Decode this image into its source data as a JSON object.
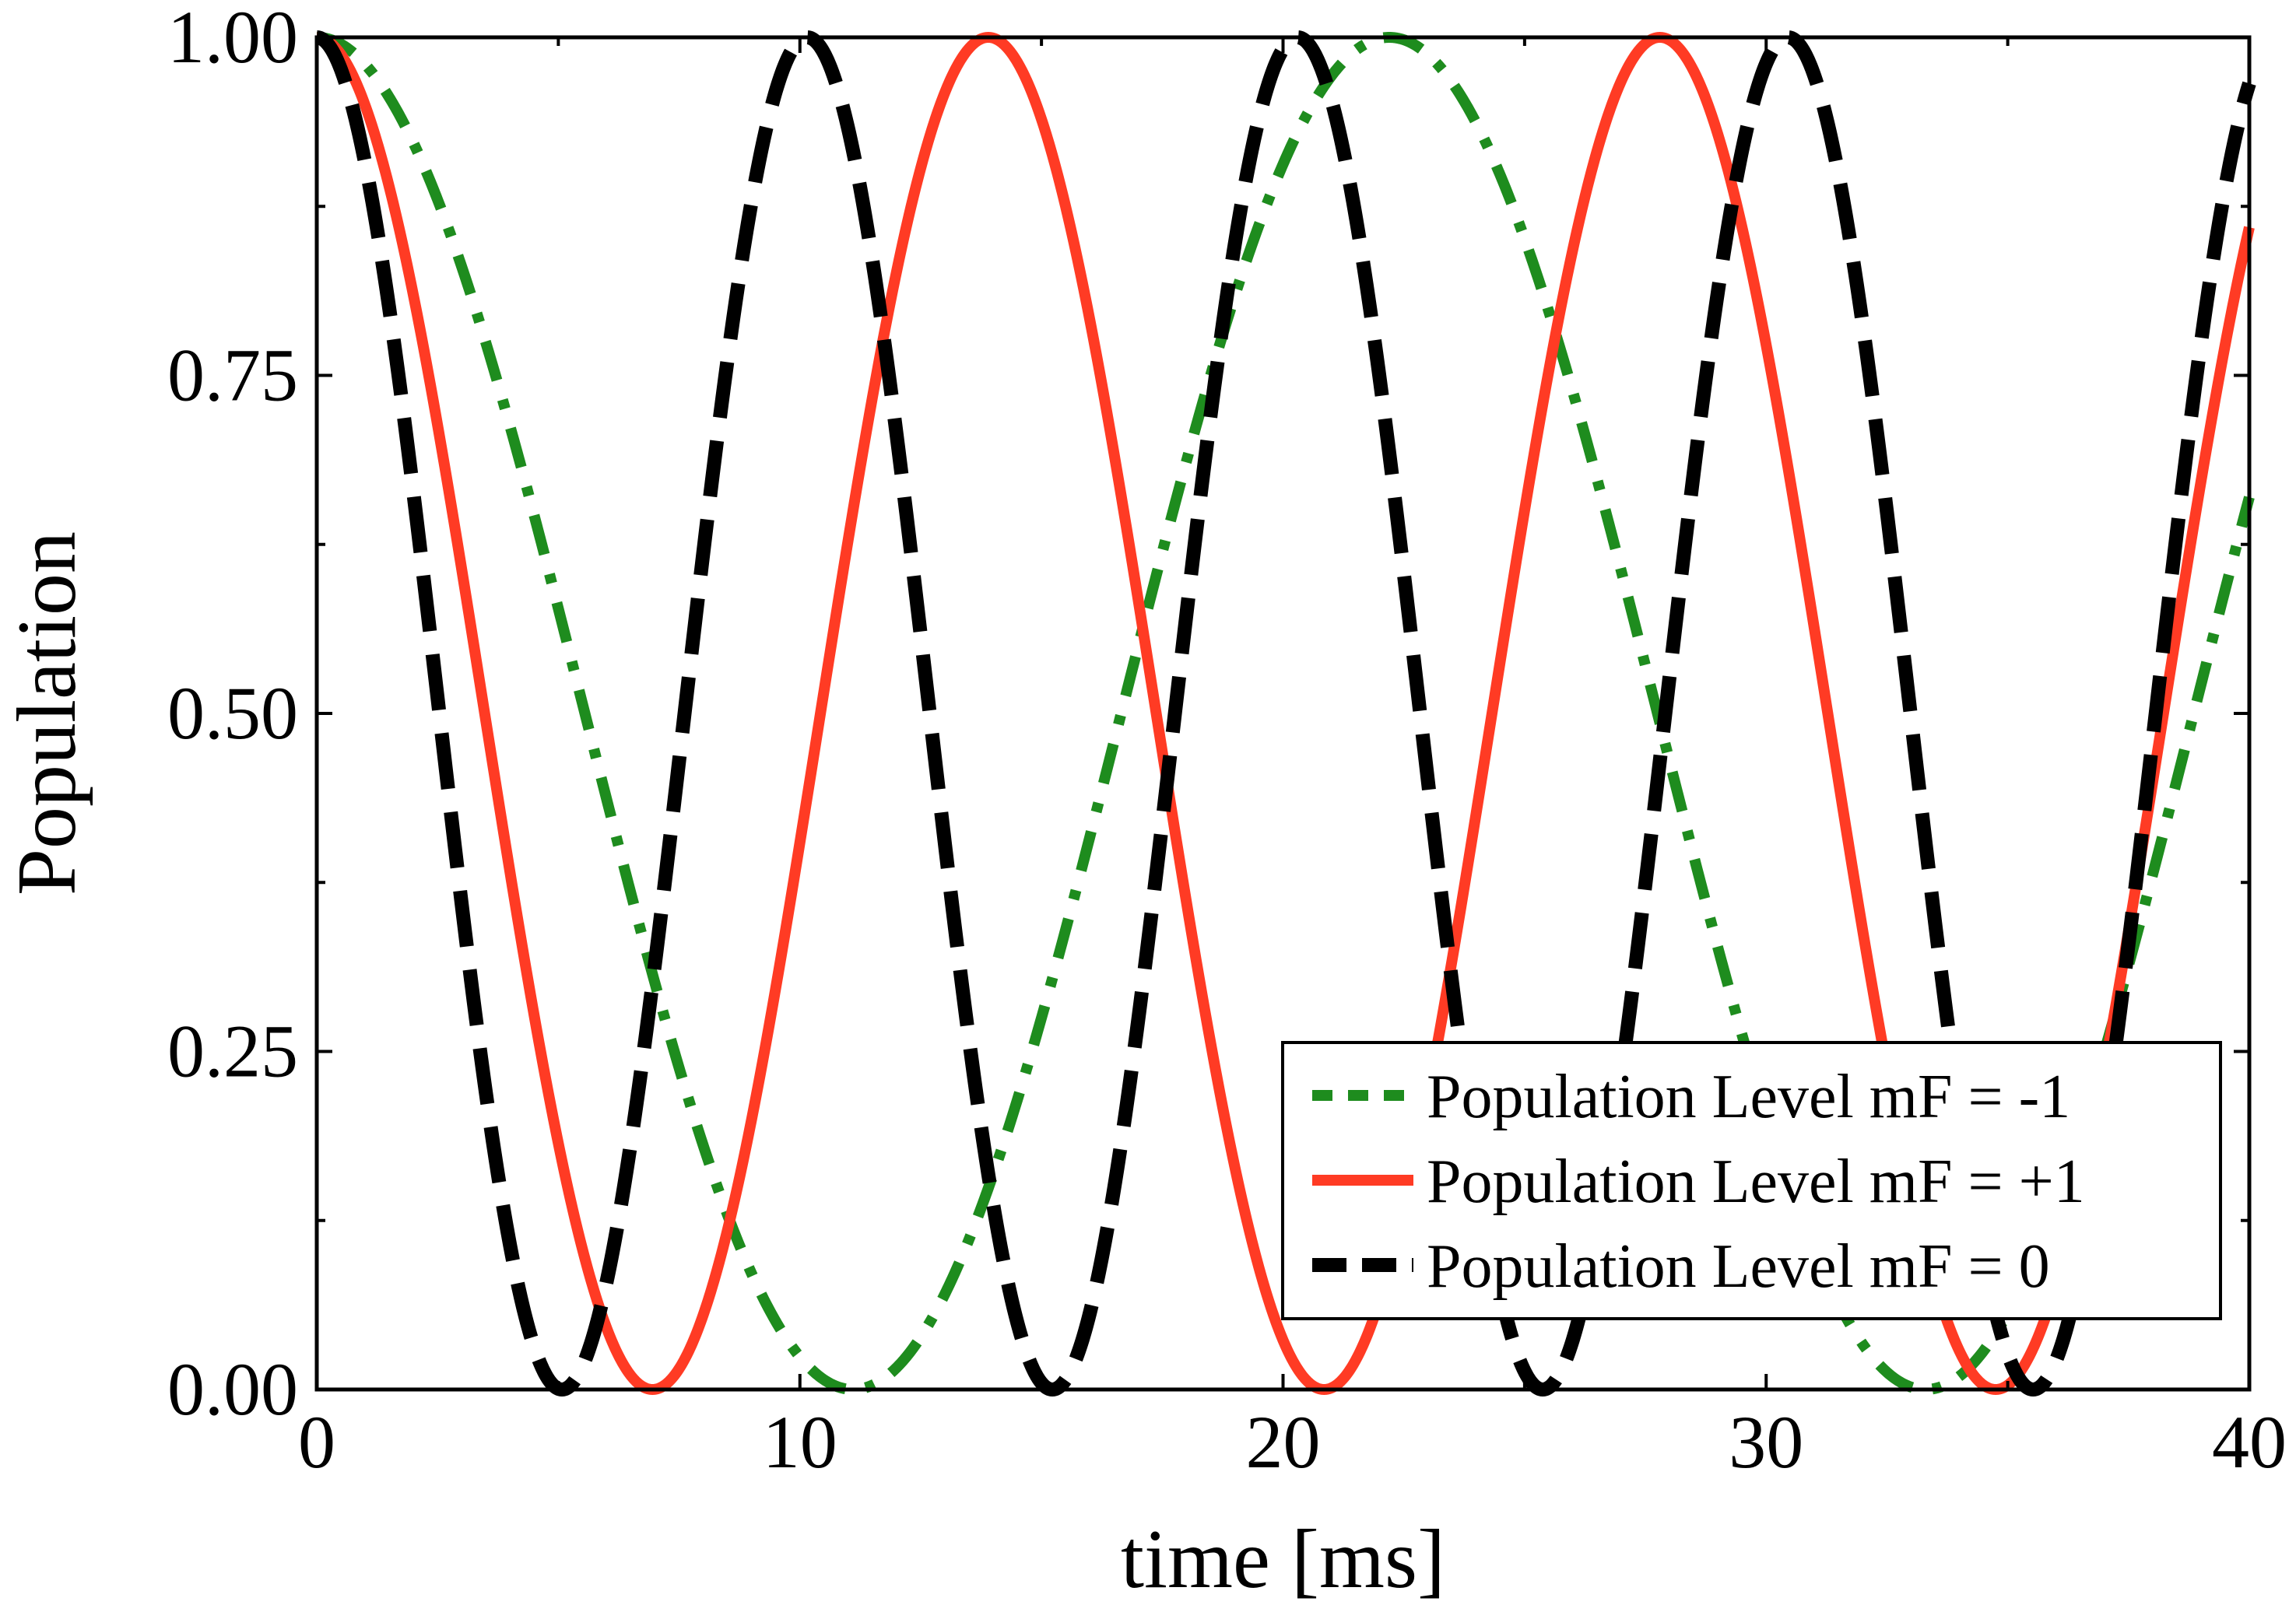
{
  "chart_data": {
    "type": "line",
    "title": "",
    "xlabel": "time [ms]",
    "ylabel": "Population",
    "xlim": [
      0,
      40
    ],
    "ylim": [
      0,
      1
    ],
    "xticks": [
      0,
      10,
      20,
      30,
      40
    ],
    "xtick_labels": [
      "0",
      "10",
      "20",
      "30",
      "40"
    ],
    "yticks": [
      0,
      0.25,
      0.5,
      0.75,
      1
    ],
    "ytick_labels": [
      "0.00",
      "0.25",
      "0.50",
      "0.75",
      "1.00"
    ],
    "x_minor_step": 5,
    "y_minor_step": 0.125,
    "grid": false,
    "legend_position": "bottom-right",
    "series": [
      {
        "name": "Population Level mF = -1",
        "color": "#1e8c1e",
        "style": "dash-dot",
        "period_ms": 22.2,
        "formula": "cos^2(pi*t/period)"
      },
      {
        "name": "Population Level mF = +1",
        "color": "#ff3b24",
        "style": "solid",
        "period_ms": 13.9,
        "formula": "cos^2(pi*t/period)"
      },
      {
        "name": "Population Level mF = 0",
        "color": "#000000",
        "style": "dashed",
        "period_ms": 10.15,
        "formula": "cos^2(pi*t/period)"
      }
    ]
  }
}
